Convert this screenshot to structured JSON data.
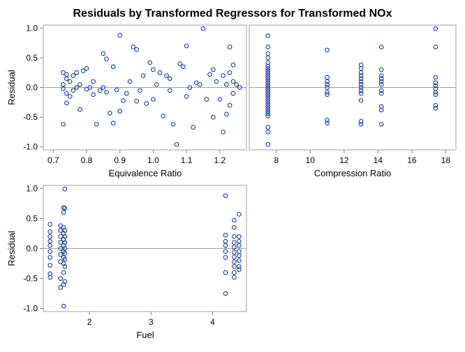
{
  "title": "Residuals by Transformed Regressors for Transformed NOx",
  "colors": {
    "marker": "#1f3c99",
    "reference": "#a0a0a0",
    "frame": "#a0a0a0"
  },
  "chart_data": [
    {
      "type": "scatter",
      "id": "equivalence",
      "xlabel": "Equivalence Ratio",
      "ylabel": "Residual",
      "xlim": [
        0.67,
        1.28
      ],
      "ylim": [
        -1.05,
        1.05
      ],
      "xticks": [
        0.7,
        0.8,
        0.9,
        1.0,
        1.1,
        1.2
      ],
      "xtick_labels": [
        "0.7",
        "0.8",
        "0.9",
        "1.0",
        "1.1",
        "1.2"
      ],
      "yticks": [
        -1.0,
        -0.5,
        0.0,
        0.5,
        1.0
      ],
      "ytick_labels": [
        "-1.0",
        "-0.5",
        "0.0",
        "0.5",
        "1.0"
      ],
      "points": [
        [
          0.73,
          0.05
        ],
        [
          0.73,
          -0.02
        ],
        [
          0.73,
          0.25
        ],
        [
          0.74,
          0.22
        ],
        [
          0.74,
          -0.1
        ],
        [
          0.73,
          -0.62
        ],
        [
          0.74,
          -0.26
        ],
        [
          0.74,
          0.15
        ],
        [
          0.75,
          -0.15
        ],
        [
          0.75,
          0.1
        ],
        [
          0.76,
          0.2
        ],
        [
          0.76,
          -0.05
        ],
        [
          0.77,
          0.25
        ],
        [
          0.77,
          0.0
        ],
        [
          0.78,
          -0.37
        ],
        [
          0.78,
          0.05
        ],
        [
          0.79,
          0.28
        ],
        [
          0.8,
          -0.03
        ],
        [
          0.8,
          0.32
        ],
        [
          0.81,
          0.0
        ],
        [
          0.82,
          -0.12
        ],
        [
          0.82,
          0.1
        ],
        [
          0.83,
          -0.62
        ],
        [
          0.84,
          -0.05
        ],
        [
          0.85,
          0.0
        ],
        [
          0.85,
          0.57
        ],
        [
          0.86,
          0.48
        ],
        [
          0.86,
          -0.08
        ],
        [
          0.87,
          -0.43
        ],
        [
          0.88,
          0.35
        ],
        [
          0.88,
          -0.6
        ],
        [
          0.89,
          -0.04
        ],
        [
          0.9,
          -0.4
        ],
        [
          0.9,
          0.88
        ],
        [
          0.91,
          -0.22
        ],
        [
          0.92,
          -0.1
        ],
        [
          0.93,
          0.1
        ],
        [
          0.94,
          0.68
        ],
        [
          0.95,
          0.64
        ],
        [
          0.95,
          -0.23
        ],
        [
          0.96,
          -0.05
        ],
        [
          0.97,
          0.2
        ],
        [
          0.98,
          -0.27
        ],
        [
          0.99,
          0.42
        ],
        [
          1.0,
          0.3
        ],
        [
          1.0,
          -0.2
        ],
        [
          1.01,
          0.05
        ],
        [
          1.02,
          0.25
        ],
        [
          1.03,
          -0.48
        ],
        [
          1.04,
          0.2
        ],
        [
          1.05,
          0.15
        ],
        [
          1.05,
          -0.05
        ],
        [
          1.06,
          -0.62
        ],
        [
          1.07,
          -0.96
        ],
        [
          1.08,
          0.4
        ],
        [
          1.09,
          0.35
        ],
        [
          1.1,
          0.7
        ],
        [
          1.1,
          -0.15
        ],
        [
          1.11,
          0.0
        ],
        [
          1.12,
          -0.67
        ],
        [
          1.13,
          0.08
        ],
        [
          1.14,
          0.05
        ],
        [
          1.15,
          0.99
        ],
        [
          1.16,
          -0.2
        ],
        [
          1.17,
          0.22
        ],
        [
          1.18,
          0.3
        ],
        [
          1.18,
          -0.5
        ],
        [
          1.19,
          0.1
        ],
        [
          1.2,
          -0.2
        ],
        [
          1.21,
          0.2
        ],
        [
          1.21,
          -0.75
        ],
        [
          1.22,
          -0.45
        ],
        [
          1.22,
          0.05
        ],
        [
          1.23,
          0.25
        ],
        [
          1.23,
          -0.3
        ],
        [
          1.23,
          0.68
        ],
        [
          1.24,
          0.38
        ],
        [
          1.24,
          0.1
        ],
        [
          1.24,
          -0.1
        ],
        [
          1.25,
          0.05
        ],
        [
          1.26,
          0.0
        ]
      ]
    },
    {
      "type": "scatter",
      "id": "compression",
      "xlabel": "Compression Ratio",
      "ylabel": "",
      "xlim": [
        6.4,
        18.6
      ],
      "ylim": [
        -1.05,
        1.05
      ],
      "xticks": [
        8,
        10,
        12,
        14,
        16,
        18
      ],
      "xtick_labels": [
        "8",
        "10",
        "12",
        "14",
        "16",
        "18"
      ],
      "yticks": [],
      "ytick_labels": [],
      "points": [
        [
          7.5,
          0.87
        ],
        [
          7.5,
          0.68
        ],
        [
          7.5,
          0.57
        ],
        [
          7.5,
          0.5
        ],
        [
          7.5,
          0.42
        ],
        [
          7.5,
          0.36
        ],
        [
          7.5,
          0.32
        ],
        [
          7.5,
          0.28
        ],
        [
          7.5,
          0.24
        ],
        [
          7.5,
          0.2
        ],
        [
          7.5,
          0.16
        ],
        [
          7.5,
          0.12
        ],
        [
          7.5,
          0.08
        ],
        [
          7.5,
          0.04
        ],
        [
          7.5,
          0.0
        ],
        [
          7.5,
          -0.04
        ],
        [
          7.5,
          -0.08
        ],
        [
          7.5,
          -0.12
        ],
        [
          7.5,
          -0.16
        ],
        [
          7.5,
          -0.2
        ],
        [
          7.5,
          -0.24
        ],
        [
          7.5,
          -0.28
        ],
        [
          7.5,
          -0.32
        ],
        [
          7.5,
          -0.36
        ],
        [
          7.5,
          -0.4
        ],
        [
          7.5,
          -0.44
        ],
        [
          7.5,
          -0.48
        ],
        [
          7.5,
          -0.67
        ],
        [
          7.5,
          -0.75
        ],
        [
          7.5,
          -0.96
        ],
        [
          11.0,
          0.63
        ],
        [
          11.0,
          0.17
        ],
        [
          11.0,
          0.1
        ],
        [
          11.0,
          0.05
        ],
        [
          11.0,
          0.0
        ],
        [
          11.0,
          -0.08
        ],
        [
          11.0,
          -0.12
        ],
        [
          11.0,
          -0.55
        ],
        [
          11.0,
          -0.6
        ],
        [
          13.0,
          0.38
        ],
        [
          13.0,
          0.32
        ],
        [
          13.0,
          0.25
        ],
        [
          13.0,
          0.2
        ],
        [
          13.0,
          0.15
        ],
        [
          13.0,
          0.1
        ],
        [
          13.0,
          0.05
        ],
        [
          13.0,
          0.0
        ],
        [
          13.0,
          -0.05
        ],
        [
          13.0,
          -0.1
        ],
        [
          13.0,
          -0.22
        ],
        [
          13.0,
          -0.57
        ],
        [
          13.0,
          -0.62
        ],
        [
          14.2,
          0.68
        ],
        [
          14.2,
          0.3
        ],
        [
          14.2,
          0.2
        ],
        [
          14.2,
          0.15
        ],
        [
          14.2,
          0.1
        ],
        [
          14.2,
          0.05
        ],
        [
          14.2,
          -0.05
        ],
        [
          14.2,
          -0.1
        ],
        [
          14.2,
          -0.32
        ],
        [
          14.2,
          -0.38
        ],
        [
          14.2,
          -0.62
        ],
        [
          17.4,
          0.99
        ],
        [
          17.4,
          0.68
        ],
        [
          17.4,
          0.17
        ],
        [
          17.4,
          0.08
        ],
        [
          17.4,
          0.03
        ],
        [
          17.4,
          -0.02
        ],
        [
          17.4,
          -0.08
        ],
        [
          17.4,
          -0.12
        ],
        [
          17.4,
          -0.3
        ],
        [
          17.4,
          -0.35
        ]
      ]
    },
    {
      "type": "scatter",
      "id": "fuel",
      "xlabel": "Fuel",
      "ylabel": "Residual",
      "xlim": [
        1.25,
        4.55
      ],
      "ylim": [
        -1.05,
        1.05
      ],
      "xticks": [
        2,
        3,
        4
      ],
      "xtick_labels": [
        "2",
        "3",
        "4"
      ],
      "yticks": [
        -1.0,
        -0.5,
        0.0,
        0.5,
        1.0
      ],
      "ytick_labels": [
        "-1.0",
        "-0.5",
        "0.0",
        "0.5",
        "1.0"
      ],
      "points": [
        [
          1.36,
          0.4
        ],
        [
          1.36,
          0.28
        ],
        [
          1.36,
          0.2
        ],
        [
          1.36,
          0.12
        ],
        [
          1.36,
          0.05
        ],
        [
          1.36,
          -0.05
        ],
        [
          1.36,
          -0.15
        ],
        [
          1.36,
          -0.28
        ],
        [
          1.36,
          -0.42
        ],
        [
          1.36,
          -0.48
        ],
        [
          1.53,
          0.38
        ],
        [
          1.53,
          0.3
        ],
        [
          1.53,
          0.2
        ],
        [
          1.53,
          0.1
        ],
        [
          1.53,
          0.0
        ],
        [
          1.53,
          -0.1
        ],
        [
          1.53,
          -0.22
        ],
        [
          1.53,
          -0.5
        ],
        [
          1.53,
          -0.65
        ],
        [
          1.58,
          0.68
        ],
        [
          1.58,
          0.6
        ],
        [
          1.58,
          0.35
        ],
        [
          1.58,
          0.25
        ],
        [
          1.58,
          0.15
        ],
        [
          1.58,
          0.05
        ],
        [
          1.58,
          -0.05
        ],
        [
          1.58,
          -0.15
        ],
        [
          1.58,
          -0.25
        ],
        [
          1.58,
          -0.4
        ],
        [
          1.58,
          -0.6
        ],
        [
          1.58,
          -0.96
        ],
        [
          1.6,
          0.99
        ],
        [
          1.6,
          0.67
        ],
        [
          1.6,
          0.3
        ],
        [
          1.6,
          0.2
        ],
        [
          1.6,
          0.1
        ],
        [
          1.6,
          0.0
        ],
        [
          1.6,
          -0.08
        ],
        [
          1.6,
          -0.18
        ],
        [
          1.6,
          -0.3
        ],
        [
          1.6,
          -0.55
        ],
        [
          4.21,
          0.88
        ],
        [
          4.21,
          0.22
        ],
        [
          4.21,
          0.12
        ],
        [
          4.21,
          0.05
        ],
        [
          4.21,
          -0.05
        ],
        [
          4.21,
          -0.15
        ],
        [
          4.21,
          -0.4
        ],
        [
          4.21,
          -0.75
        ],
        [
          4.35,
          0.47
        ],
        [
          4.35,
          0.35
        ],
        [
          4.35,
          0.2
        ],
        [
          4.35,
          0.1
        ],
        [
          4.35,
          0.02
        ],
        [
          4.35,
          -0.06
        ],
        [
          4.35,
          -0.14
        ],
        [
          4.35,
          -0.22
        ],
        [
          4.35,
          -0.3
        ],
        [
          4.35,
          -0.4
        ],
        [
          4.35,
          -0.48
        ],
        [
          4.43,
          0.57
        ],
        [
          4.43,
          0.2
        ],
        [
          4.43,
          0.12
        ],
        [
          4.43,
          0.05
        ],
        [
          4.43,
          -0.05
        ],
        [
          4.43,
          -0.12
        ],
        [
          4.43,
          -0.2
        ],
        [
          4.43,
          -0.3
        ],
        [
          4.43,
          -0.35
        ]
      ]
    }
  ]
}
